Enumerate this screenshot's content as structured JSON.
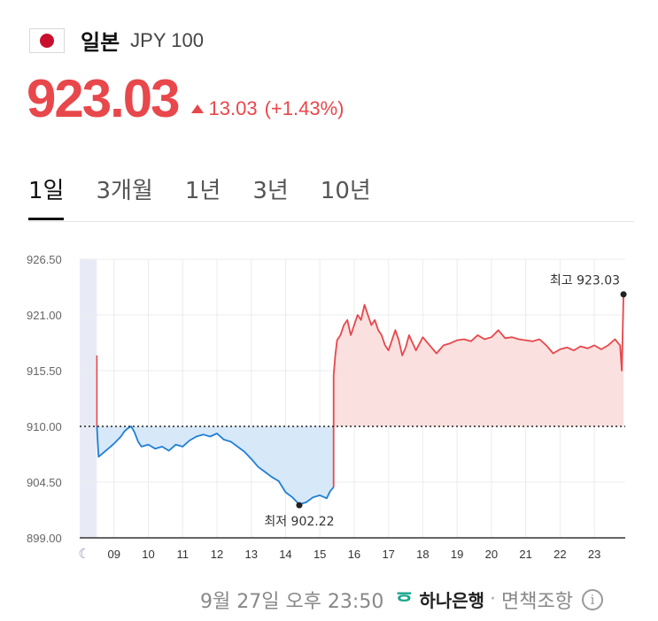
{
  "header": {
    "country": "일본",
    "code": "JPY 100"
  },
  "price": {
    "value": "923.03",
    "change": "13.03",
    "percent": "(+1.43%)"
  },
  "tabs": [
    {
      "label": "1일",
      "active": true
    },
    {
      "label": "3개월",
      "active": false
    },
    {
      "label": "1년",
      "active": false
    },
    {
      "label": "3년",
      "active": false
    },
    {
      "label": "10년",
      "active": false
    }
  ],
  "footer": {
    "timestamp": "9월 27일 오후 23:50",
    "bank": "하나은행",
    "separator": "·",
    "disclaimer": "면책조항",
    "info_glyph": "i"
  },
  "colors": {
    "up": "#e8474b",
    "down": "#1f7fd6",
    "up_fill": "#fbe0e0",
    "down_fill": "#d7e8f8"
  },
  "chart_data": {
    "type": "line",
    "baseline": 910.0,
    "ylim": [
      899.0,
      926.5
    ],
    "yticks": [
      "926.50",
      "921.00",
      "915.50",
      "910.00",
      "904.50",
      "899.00"
    ],
    "xticks": [
      "09",
      "10",
      "11",
      "12",
      "13",
      "14",
      "15",
      "16",
      "17",
      "18",
      "19",
      "20",
      "21",
      "22",
      "23"
    ],
    "xlim": [
      8.0,
      23.9
    ],
    "grid": true,
    "series": [
      {
        "x": [
          8.5,
          8.5,
          8.55,
          8.9,
          9.0,
          9.2,
          9.3,
          9.4,
          9.5,
          9.6,
          9.7,
          9.8,
          10.0,
          10.2,
          10.4,
          10.6,
          10.8,
          11.0,
          11.2,
          11.4,
          11.6,
          11.8,
          12.0,
          12.2,
          12.4,
          12.6,
          12.8,
          13.0,
          13.2,
          13.4,
          13.6,
          13.8,
          14.0,
          14.2,
          14.4,
          14.6,
          14.8,
          15.0,
          15.2,
          15.3,
          15.4,
          15.4,
          15.45,
          15.5,
          15.6,
          15.7,
          15.8,
          15.9,
          16.0,
          16.1,
          16.2,
          16.3,
          16.4,
          16.5,
          16.6,
          16.7,
          16.8,
          16.9,
          17.0,
          17.1,
          17.2,
          17.3,
          17.4,
          17.5,
          17.6,
          17.8,
          18.0,
          18.2,
          18.4,
          18.6,
          18.8,
          19.0,
          19.2,
          19.4,
          19.6,
          19.8,
          20.0,
          20.2,
          20.4,
          20.6,
          20.8,
          21.0,
          21.2,
          21.4,
          21.6,
          21.8,
          22.0,
          22.2,
          22.4,
          22.6,
          22.8,
          23.0,
          23.2,
          23.4,
          23.6,
          23.75,
          23.8,
          23.85
        ],
        "y": [
          917.0,
          910.0,
          907.0,
          908.0,
          908.3,
          909.0,
          909.5,
          909.8,
          910.0,
          909.4,
          908.5,
          908.0,
          908.2,
          907.8,
          908.0,
          907.6,
          908.2,
          908.0,
          908.6,
          909.0,
          909.2,
          909.0,
          909.3,
          908.7,
          908.5,
          908.0,
          907.5,
          906.8,
          906.0,
          905.5,
          905.0,
          904.6,
          903.5,
          903.0,
          902.3,
          902.5,
          903.0,
          903.2,
          902.9,
          903.6,
          904.0,
          915.0,
          917.0,
          918.5,
          919.0,
          920.0,
          920.5,
          919.0,
          920.0,
          921.0,
          920.5,
          922.0,
          921.0,
          920.0,
          920.5,
          919.5,
          919.0,
          918.0,
          917.5,
          918.5,
          919.5,
          918.5,
          917.0,
          917.8,
          919.0,
          917.5,
          918.8,
          918.0,
          917.2,
          918.0,
          918.2,
          918.5,
          918.6,
          918.4,
          919.0,
          918.6,
          918.8,
          919.5,
          918.7,
          918.8,
          918.6,
          918.5,
          918.4,
          918.6,
          918.0,
          917.2,
          917.6,
          917.8,
          917.5,
          917.9,
          917.7,
          918.0,
          917.6,
          918.0,
          918.6,
          918.0,
          915.5,
          923.03
        ]
      }
    ],
    "annotations": [
      {
        "label": "최고 923.03",
        "x": 23.85,
        "y": 923.03
      },
      {
        "label": "최저 902.22",
        "x": 14.4,
        "y": 902.22
      }
    ]
  }
}
